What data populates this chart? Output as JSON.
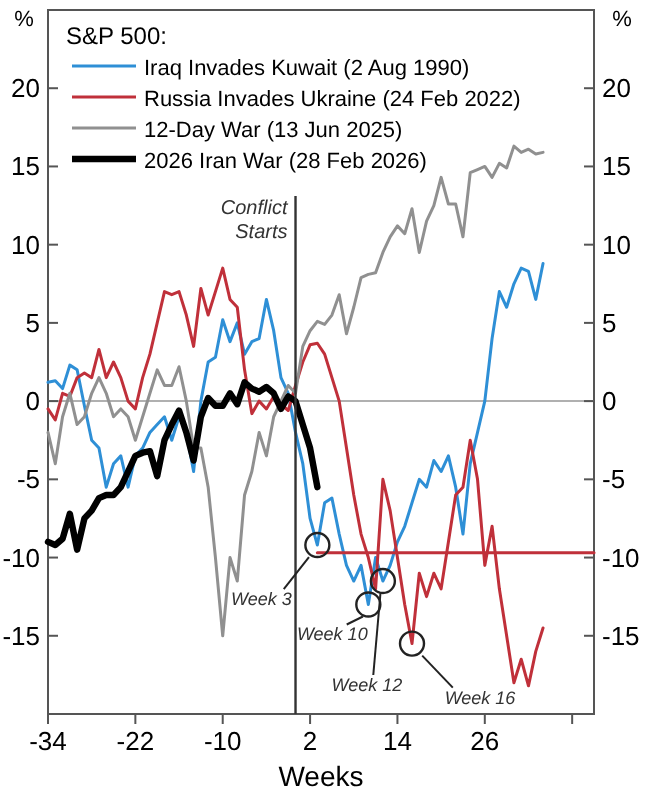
{
  "chart_data": {
    "type": "line",
    "legend_title": "S&P 500:",
    "legend": "top left",
    "xlabel": "Weeks",
    "ylabel": "%",
    "y2label": "%",
    "x": [
      -34,
      -33,
      -32,
      -31,
      -30,
      -29,
      -28,
      -27,
      -26,
      -25,
      -24,
      -23,
      -22,
      -21,
      -20,
      -19,
      -18,
      -17,
      -16,
      -15,
      -14,
      -13,
      -12,
      -11,
      -10,
      -9,
      -8,
      -7,
      -6,
      -5,
      -4,
      -3,
      -2,
      -1,
      0,
      1,
      2,
      3,
      4,
      5,
      6,
      7,
      8,
      9,
      10,
      11,
      12,
      13,
      14,
      15,
      16,
      17,
      18,
      19,
      20,
      21,
      22,
      23,
      24,
      25,
      26,
      27,
      28,
      29,
      30,
      31,
      32,
      33,
      34
    ],
    "series": [
      {
        "name": "Iraq Invades Kuwait (2 Aug 1990)",
        "color": "#2e8fd6",
        "values": [
          1.2,
          1.3,
          0.8,
          2.3,
          2,
          -0.3,
          -2.5,
          -3,
          -5.5,
          -4,
          -3.5,
          -5.5,
          -3.5,
          -3,
          -2,
          -1.5,
          -1,
          -2.5,
          -1,
          -2,
          -4.5,
          0,
          2.5,
          2.8,
          5.2,
          3.8,
          5,
          3,
          3.8,
          4,
          6.5,
          4.5,
          1.5,
          0.5,
          -2,
          -4,
          -7.5,
          -9.2,
          -6.5,
          -6.2,
          -8.5,
          -10.5,
          -11.5,
          -10.5,
          -13,
          -10,
          -11.5,
          -10.5,
          -9,
          -8,
          -6.5,
          -5,
          -5.5,
          -3.8,
          -4.5,
          -3.5,
          -5.5,
          -8.5,
          -4,
          -2,
          0,
          4,
          7,
          6,
          7.5,
          8.5,
          8.3,
          6.5,
          8.8
        ]
      },
      {
        "name": "Russia Invades Ukraine (24 Feb 2022)",
        "color": "#c0303a",
        "values": [
          -0.5,
          -1.2,
          0.5,
          0.3,
          1.5,
          1.8,
          1.5,
          3.3,
          1.5,
          2.5,
          1.5,
          0,
          -0.5,
          1.5,
          3,
          5,
          7,
          6.8,
          7,
          5.5,
          3.5,
          7.2,
          5.5,
          7,
          8.5,
          6.5,
          6,
          2,
          -0.8,
          0,
          -0.5,
          0.3,
          -0.2,
          -0.6,
          1,
          2.5,
          3.6,
          3.7,
          3,
          1.5,
          0,
          -3,
          -6,
          -8.5,
          -10,
          -12,
          -5,
          -7,
          -10,
          -13,
          -15.5,
          -11,
          -12.5,
          -11,
          -12,
          -9,
          -6,
          -5.5,
          -2.5,
          -5,
          -10.5,
          -8,
          -12,
          -15,
          -18,
          -16.5,
          -18.2,
          -16,
          -14.5
        ]
      },
      {
        "name": "12-Day War (13 Jun 2025)",
        "color": "#909090",
        "values": [
          -2,
          -4,
          -1,
          0.5,
          -1.5,
          -1,
          0.5,
          1.5,
          0.5,
          -1,
          -0.5,
          -1,
          -2.5,
          -1,
          0.5,
          2,
          1,
          1,
          2.2,
          0,
          -3,
          -3,
          -5.5,
          -10,
          -15,
          -10,
          -11.5,
          -6,
          -4.5,
          -2,
          -3.5,
          -1,
          0,
          1,
          0.5,
          3.5,
          4.5,
          5.1,
          4.9,
          5.5,
          6.8,
          4.3,
          6,
          7.9,
          8.1,
          8.2,
          9.5,
          10.5,
          11.2,
          10.7,
          12.3,
          9.5,
          11.5,
          12.5,
          14.3,
          12.6,
          12.6,
          10.5,
          14.6,
          14.8,
          15,
          14.3,
          15.2,
          14.9,
          16.3,
          15.9,
          16.1,
          15.8,
          15.9
        ]
      },
      {
        "name": "2026 Iran War (28 Feb 2026)",
        "color": "#000000",
        "values": [
          -9,
          -9.2,
          -8.8,
          -7.2,
          -9.5,
          -7.5,
          -7,
          -6.2,
          -6,
          -6,
          -5.5,
          -4.5,
          -3.5,
          -3.3,
          -3.2,
          -4.8,
          -2.5,
          -1.5,
          -0.6,
          -2,
          -3.8,
          -1,
          0.2,
          -0.3,
          -0.3,
          0.5,
          -0.2,
          1.2,
          0.8,
          0.6,
          0.9,
          0.5,
          -0.5,
          0.3,
          0,
          -1.5,
          -3,
          -5.5,
          null,
          null,
          null,
          null,
          null,
          null,
          null,
          null,
          null,
          null,
          null,
          null,
          null,
          null,
          null,
          null,
          null,
          null,
          null,
          null,
          null,
          null,
          null,
          null,
          null,
          null,
          null,
          null,
          null,
          null,
          null
        ]
      },
      {
        "color": "#c0303a",
        "x": [
          3,
          41
        ],
        "values": [
          -9.7,
          -9.7
        ]
      }
    ],
    "xlim": [
      -34,
      41
    ],
    "xticks": [
      -34,
      -22,
      -10,
      2,
      14,
      26,
      {
        "value": 38,
        "label": null
      }
    ],
    "ylim": [
      -20,
      25
    ],
    "yticks": [
      -15,
      -10,
      -5,
      0,
      5,
      10,
      15,
      20
    ],
    "y2lim": [
      -20,
      25
    ],
    "y2ticks": [
      -15,
      -10,
      -5,
      0,
      5,
      10,
      15,
      20
    ],
    "ref_lines": [
      {
        "axis": "x",
        "value": 0,
        "label": "Conflict Starts",
        "color": "#333333"
      },
      {
        "axis": "y",
        "value": 0,
        "color": "#b0b0b0"
      }
    ],
    "annotations": [
      {
        "text": "Week 3",
        "x": 3,
        "y": -9.2
      },
      {
        "text": "Week 10",
        "x": 10,
        "y": -13
      },
      {
        "text": "Week 12",
        "x": 12,
        "y": -11.5
      },
      {
        "text": "Week 16",
        "x": 16,
        "y": -15.5
      }
    ],
    "grid": false,
    "marker": "none",
    "line_style": "solid"
  }
}
